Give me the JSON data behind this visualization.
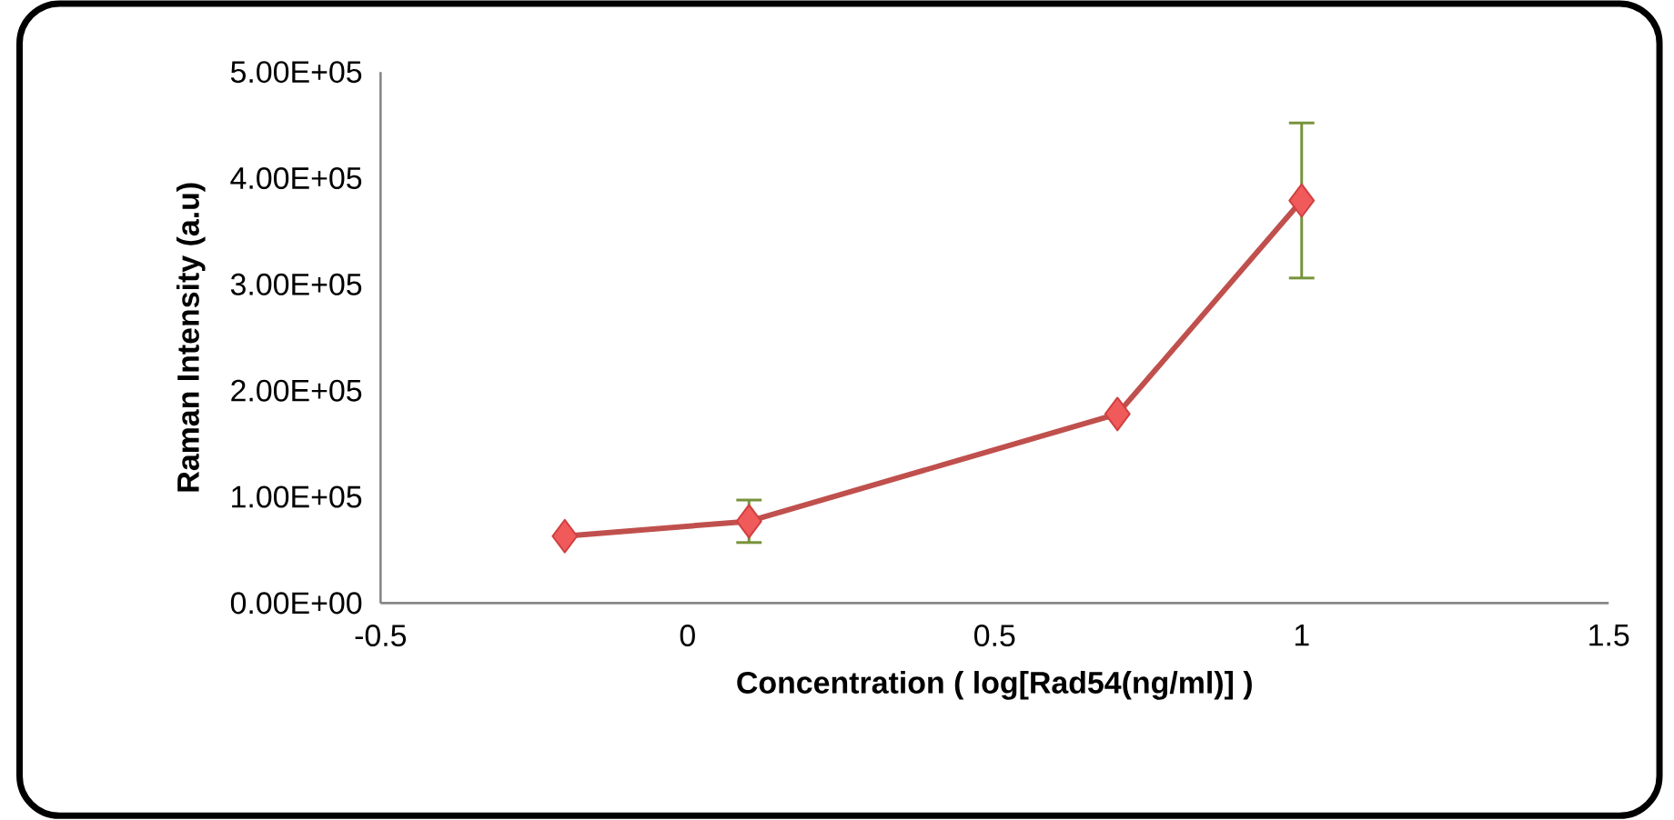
{
  "chart_data": {
    "type": "line",
    "xlabel": "Concentration ( log[Rad54(ng/ml)] )",
    "ylabel": "Raman Intensity (a.u)",
    "x": [
      -0.2,
      0.1,
      0.7,
      1
    ],
    "series": [
      {
        "color": "#c0504d",
        "values": [
          63000,
          77000,
          178000,
          379000
        ],
        "errors": [
          null,
          20000,
          null,
          73000
        ]
      }
    ],
    "marker": "diamond",
    "xlim": [
      -0.5,
      1.5
    ],
    "xticks": [
      -0.5,
      0,
      0.5,
      1,
      1.5
    ],
    "ylim": [
      0,
      500000
    ],
    "yticks": [
      {
        "value": 0,
        "label": "0.00E+00"
      },
      {
        "value": 100000,
        "label": "1.00E+05"
      },
      {
        "value": 200000,
        "label": "2.00E+05"
      },
      {
        "value": 300000,
        "label": "3.00E+05"
      },
      {
        "value": 400000,
        "label": "4.00E+05"
      },
      {
        "value": 500000,
        "label": "5.00E+05"
      }
    ],
    "grid": false
  }
}
